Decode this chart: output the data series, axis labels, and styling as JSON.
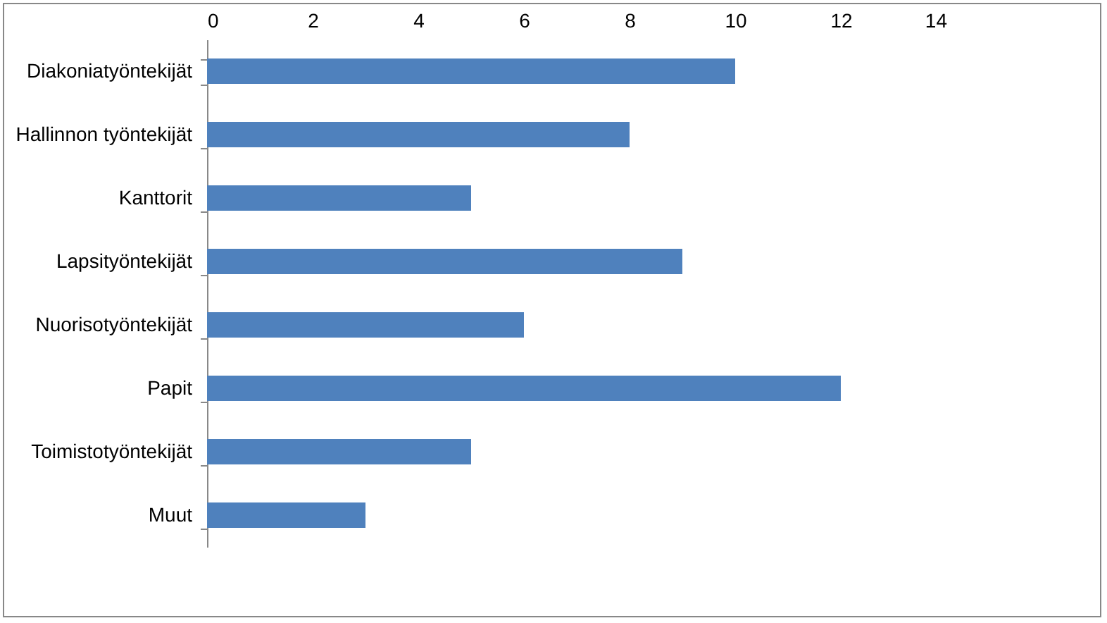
{
  "chart_data": {
    "type": "bar",
    "orientation": "horizontal",
    "categories": [
      "Diakoniatyöntekijät",
      "Hallinnon työntekijät",
      "Kanttorit",
      "Lapsityöntekijät",
      "Nuorisotyöntekijät",
      "Papit",
      "Toimistotyöntekijät",
      "Muut"
    ],
    "values": [
      10,
      8,
      5,
      9,
      6,
      12,
      5,
      3
    ],
    "color": "#4f81bd",
    "xlim": [
      0,
      14
    ],
    "xticks": [
      0,
      2,
      4,
      6,
      8,
      10,
      12,
      14
    ],
    "grid": false
  }
}
